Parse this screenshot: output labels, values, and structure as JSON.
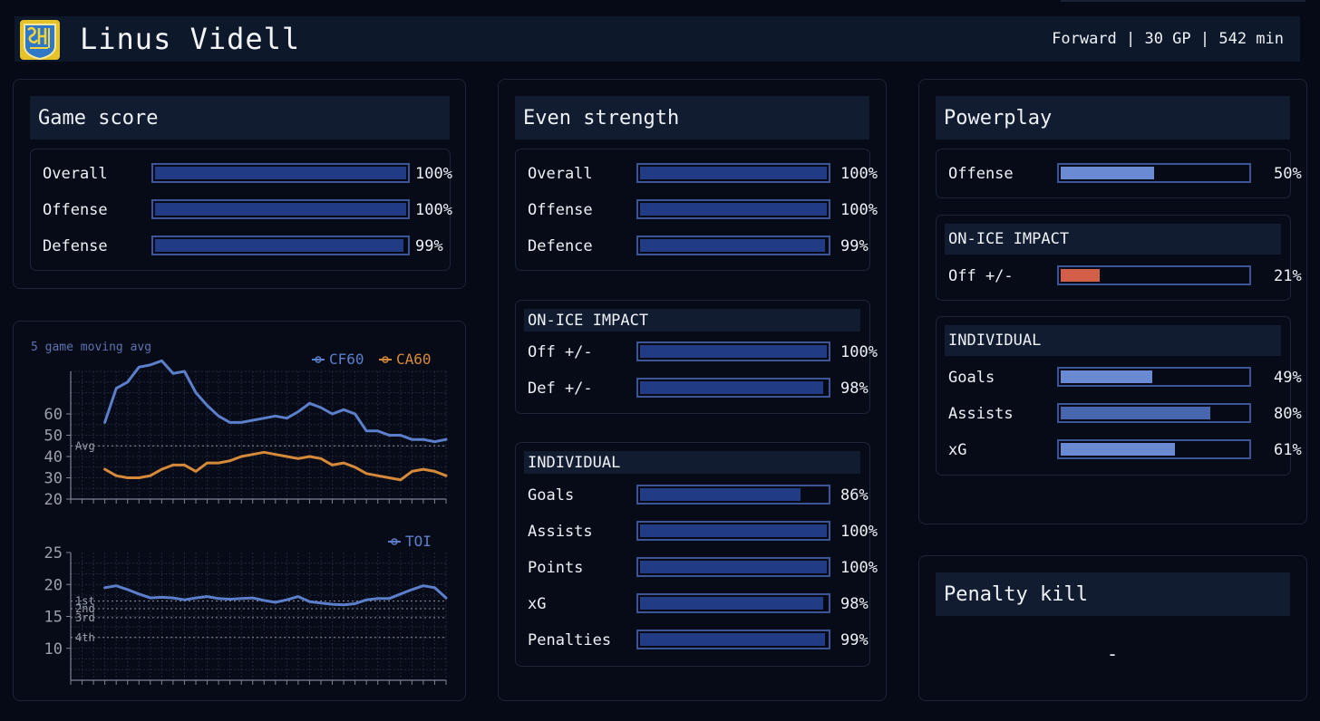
{
  "header": {
    "player_name": "Linus Videll",
    "meta": "Forward | 30 GP | 542 min",
    "logo_icon": "club-crest-icon"
  },
  "colors": {
    "strong": "#213b85",
    "medium": "#4766ad",
    "light": "#6a8bd3",
    "low": "#d15f49",
    "bar_border": "#3c5596",
    "cf": "#5c7fcc",
    "ca": "#d7893a",
    "toi": "#5c7fcc"
  },
  "game_score": {
    "title": "Game score",
    "rows": [
      {
        "label": "Overall",
        "pct": "100%",
        "value": 100
      },
      {
        "label": "Offense",
        "pct": "100%",
        "value": 100
      },
      {
        "label": "Defense",
        "pct": "99%",
        "value": 99
      }
    ]
  },
  "even_strength": {
    "title": "Even strength",
    "rows": [
      {
        "label": "Overall",
        "pct": "100%",
        "value": 100
      },
      {
        "label": "Offense",
        "pct": "100%",
        "value": 100
      },
      {
        "label": "Defence",
        "pct": "99%",
        "value": 99
      }
    ],
    "impact_title": "ON-ICE IMPACT",
    "impact_rows": [
      {
        "label": "Off +/-",
        "pct": "100%",
        "value": 100
      },
      {
        "label": "Def +/-",
        "pct": "98%",
        "value": 98
      }
    ],
    "individual_title": "INDIVIDUAL",
    "individual_rows": [
      {
        "label": "Goals",
        "pct": "86%",
        "value": 86
      },
      {
        "label": "Assists",
        "pct": "100%",
        "value": 100
      },
      {
        "label": "Points",
        "pct": "100%",
        "value": 100
      },
      {
        "label": "xG",
        "pct": "98%",
        "value": 98
      },
      {
        "label": "Penalties",
        "pct": "99%",
        "value": 99
      }
    ]
  },
  "powerplay": {
    "title": "Powerplay",
    "rows": [
      {
        "label": "Offense",
        "pct": "50%",
        "value": 50
      }
    ],
    "impact_title": "ON-ICE IMPACT",
    "impact_rows": [
      {
        "label": "Off +/-",
        "pct": "21%",
        "value": 21
      }
    ],
    "individual_title": "INDIVIDUAL",
    "individual_rows": [
      {
        "label": "Goals",
        "pct": "49%",
        "value": 49
      },
      {
        "label": "Assists",
        "pct": "80%",
        "value": 80
      },
      {
        "label": "xG",
        "pct": "61%",
        "value": 61
      }
    ]
  },
  "penalty_kill": {
    "title": "Penalty kill",
    "value": "-"
  },
  "chart_data": [
    {
      "type": "line",
      "title": "5 game moving avg",
      "ylim": [
        20,
        80
      ],
      "yticks": [
        20,
        30,
        40,
        50,
        60
      ],
      "xlim": [
        -3,
        30
      ],
      "grid": true,
      "legend": "top-right",
      "reference_lines": [
        {
          "label": "Avg",
          "y": 45
        }
      ],
      "series": [
        {
          "name": "CF60",
          "x": [
            0,
            1,
            2,
            3,
            4,
            5,
            6,
            7,
            8,
            9,
            10,
            11,
            12,
            13,
            14,
            15,
            16,
            17,
            18,
            19,
            20,
            21,
            22,
            23,
            24,
            25,
            26,
            27,
            28,
            29,
            30
          ],
          "values": [
            56,
            72,
            75,
            82,
            83,
            85,
            79,
            80,
            70,
            64,
            59,
            56,
            56,
            57,
            58,
            59,
            58,
            61,
            65,
            63,
            60,
            62,
            60,
            52,
            52,
            50,
            50,
            48,
            48,
            47,
            48
          ]
        },
        {
          "name": "CA60",
          "x": [
            0,
            1,
            2,
            3,
            4,
            5,
            6,
            7,
            8,
            9,
            10,
            11,
            12,
            13,
            14,
            15,
            16,
            17,
            18,
            19,
            20,
            21,
            22,
            23,
            24,
            25,
            26,
            27,
            28,
            29,
            30
          ],
          "values": [
            34,
            31,
            30,
            30,
            31,
            34,
            36,
            36,
            33,
            37,
            37,
            38,
            40,
            41,
            42,
            41,
            40,
            39,
            40,
            39,
            36,
            37,
            35,
            32,
            31,
            30,
            29,
            33,
            34,
            33,
            31
          ]
        }
      ]
    },
    {
      "type": "line",
      "ylim": [
        5,
        25
      ],
      "yticks": [
        10,
        15,
        20,
        25
      ],
      "xlim": [
        -3,
        30
      ],
      "grid": true,
      "legend": "top-right",
      "reference_lines": [
        {
          "label": "1st",
          "y": 17.4
        },
        {
          "label": "2nd",
          "y": 16.2
        },
        {
          "label": "3rd",
          "y": 14.8
        },
        {
          "label": "4th",
          "y": 11.7
        }
      ],
      "series": [
        {
          "name": "TOI",
          "x": [
            0,
            1,
            2,
            3,
            4,
            5,
            6,
            7,
            8,
            9,
            10,
            11,
            12,
            13,
            14,
            15,
            16,
            17,
            18,
            19,
            20,
            21,
            22,
            23,
            24,
            25,
            26,
            27,
            28,
            29,
            30
          ],
          "values": [
            19.5,
            19.8,
            19.2,
            18.5,
            17.9,
            18.0,
            17.9,
            17.6,
            17.9,
            18.1,
            17.8,
            17.7,
            17.8,
            17.9,
            17.5,
            17.2,
            17.6,
            18.1,
            17.3,
            17.1,
            16.9,
            16.8,
            17.0,
            17.6,
            17.8,
            17.8,
            18.5,
            19.2,
            19.8,
            19.5,
            17.9
          ]
        }
      ]
    }
  ]
}
